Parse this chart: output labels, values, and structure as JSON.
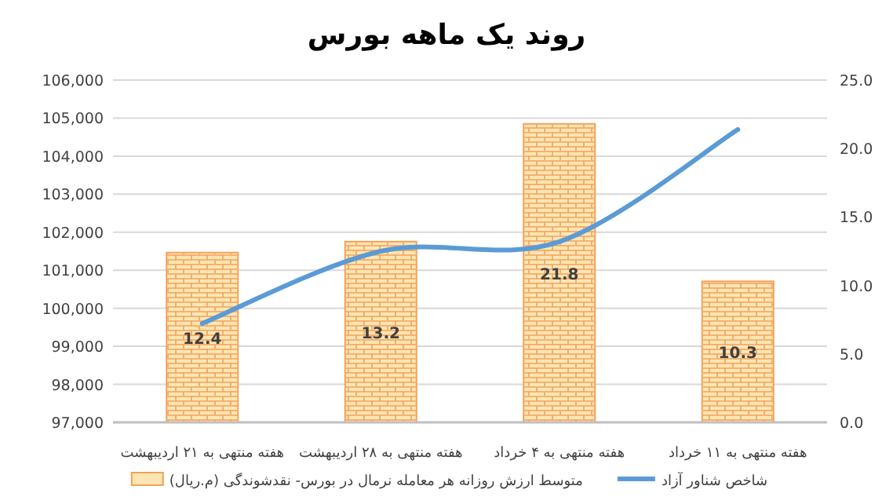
{
  "chart_data": {
    "type": "bar",
    "title": "روند یک ماهه بورس",
    "categories": [
      "هفته منتهی به ۲۱ اردیبهشت",
      "هفته منتهی به ۲۸ اردیبهشت",
      "هفته منتهی به ۴ خرداد",
      "هفته منتهی به ۱۱ خرداد"
    ],
    "series": [
      {
        "name": "متوسط ارزش روزانه هر معامله نرمال در بورس- نقدشوندگی (م.ریال)",
        "axis": "y2",
        "color": "#fde6b4",
        "values": [
          12.4,
          13.2,
          21.8,
          10.3
        ],
        "value_labels": [
          "12.4",
          "13.2",
          "21.8",
          "10.3"
        ]
      },
      {
        "name": "شاخص شناور آزاد",
        "type": "line",
        "axis": "y",
        "color": "#5b9bd5",
        "values": [
          99600,
          101500,
          101750,
          104700
        ]
      }
    ],
    "ylim": [
      97000,
      106000
    ],
    "yticks": [
      {
        "value": 97000,
        "label": "97,000"
      },
      {
        "value": 98000,
        "label": "98,000"
      },
      {
        "value": 99000,
        "label": "99,000"
      },
      {
        "value": 100000,
        "label": "100,000"
      },
      {
        "value": 101000,
        "label": "101,000"
      },
      {
        "value": 102000,
        "label": "102,000"
      },
      {
        "value": 103000,
        "label": "103,000"
      },
      {
        "value": 104000,
        "label": "104,000"
      },
      {
        "value": 105000,
        "label": "105,000"
      },
      {
        "value": 106000,
        "label": "106,000"
      }
    ],
    "y2lim": [
      0,
      25
    ],
    "y2ticks": [
      {
        "value": 0,
        "label": "0.0"
      },
      {
        "value": 5,
        "label": "5.0"
      },
      {
        "value": 10,
        "label": "10.0"
      },
      {
        "value": 15,
        "label": "15.0"
      },
      {
        "value": 20,
        "label": "20.0"
      },
      {
        "value": 25,
        "label": "25.0"
      }
    ],
    "grid": "y",
    "legend": "bottom",
    "marker": "none"
  }
}
